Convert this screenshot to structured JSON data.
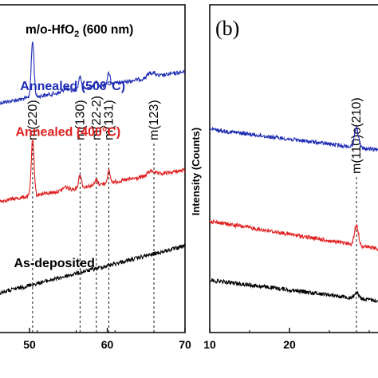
{
  "chart_data": [
    {
      "type": "line",
      "panel_label": "",
      "title": {
        "main": "m/o-HfO",
        "sub": "2",
        "tail": " (600 nm)"
      },
      "xlabel": "",
      "ylabel": "",
      "xlim": [
        46,
        70
      ],
      "x_ticks": [
        "50",
        "60",
        "70"
      ],
      "grid": false,
      "series": [
        {
          "name": "Annealed (500°C)",
          "color": "#1f2db4",
          "baseline": 0.3,
          "peak_scale": 1.0,
          "slope": -0.004,
          "label_x": 48.8,
          "label_y": 0.02
        },
        {
          "name": "Annealed (400°C)",
          "color": "#e01f1f",
          "baseline": 0.6,
          "peak_scale": 1.0,
          "slope": -0.004,
          "label_x": 48.2,
          "label_y": 0.18
        },
        {
          "name": "As-deposited",
          "color": "#000000",
          "baseline": 0.88,
          "peak_scale": 0.0,
          "slope": -0.006,
          "label_x": 48.0,
          "label_y": 0.06
        }
      ],
      "peaks": [
        {
          "x": 50.4,
          "height": 0.17,
          "width": 0.18
        },
        {
          "x": 56.5,
          "height": 0.04,
          "width": 0.18
        },
        {
          "x": 58.6,
          "height": 0.015,
          "width": 0.18
        },
        {
          "x": 60.2,
          "height": 0.035,
          "width": 0.18
        },
        {
          "x": 54.6,
          "height": 0.01,
          "width": 0.3
        },
        {
          "x": 66.0,
          "height": 0.01,
          "width": 0.3
        },
        {
          "x": 65.4,
          "height": 0.012,
          "width": 0.3
        }
      ],
      "reflections": [
        {
          "label": "m(220)",
          "x": 50.4
        },
        {
          "label": "m(130)",
          "x": 56.5
        },
        {
          "label": "m(22-2)",
          "x": 58.6
        },
        {
          "label": "m(131)",
          "x": 60.2
        },
        {
          "label": "m(123)",
          "x": 66.0
        }
      ]
    },
    {
      "type": "line",
      "panel_label": "(b)",
      "title": "",
      "xlabel": "",
      "ylabel": "Intensity (Counts)",
      "xlim": [
        10,
        31.5
      ],
      "x_ticks": [
        "10",
        "20"
      ],
      "grid": false,
      "series": [
        {
          "name": "",
          "color": "#1f2db4",
          "baseline": 0.38,
          "peak_scale": 1.0,
          "slope": 0.003
        },
        {
          "name": "",
          "color": "#e01f1f",
          "baseline": 0.66,
          "peak_scale": 1.0,
          "slope": 0.004
        },
        {
          "name": "",
          "color": "#000000",
          "baseline": 0.84,
          "peak_scale": 0.3,
          "slope": 0.003
        }
      ],
      "peaks": [
        {
          "x": 28.4,
          "height": 0.06,
          "width": 0.25
        }
      ],
      "reflections": [
        {
          "label": "m(110)o(210)",
          "x": 28.4
        }
      ]
    }
  ]
}
